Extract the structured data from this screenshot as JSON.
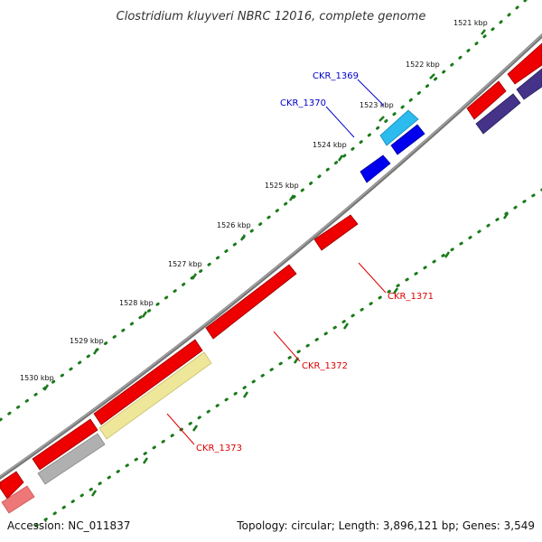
{
  "title": "Clostridium kluyveri NBRC 12016, complete genome",
  "footer": {
    "accession": "Accession: NC_011837",
    "summary": "Topology: circular; Length: 3,896,121 bp; Genes: 3,549"
  },
  "ticks": [
    {
      "label": "1521 kbp"
    },
    {
      "label": "1522 kbp"
    },
    {
      "label": "1523 kbp"
    },
    {
      "label": "1524 kbp"
    },
    {
      "label": "1525 kbp"
    },
    {
      "label": "1526 kbp"
    },
    {
      "label": "1527 kbp"
    },
    {
      "label": "1528 kbp"
    },
    {
      "label": "1529 kbp"
    },
    {
      "label": "1530 kbp"
    }
  ],
  "labels": [
    {
      "text": "CKR_1369",
      "color": "#0000cc"
    },
    {
      "text": "CKR_1370",
      "color": "#0000cc"
    },
    {
      "text": "CKR_1371",
      "color": "#dd0000"
    },
    {
      "text": "CKR_1372",
      "color": "#dd0000"
    },
    {
      "text": "CKR_1373",
      "color": "#dd0000"
    }
  ],
  "colors": {
    "backbone": "#777777",
    "tick": "#1a7a1a",
    "red": "#ee0000",
    "blue": "#0000ee",
    "cyan": "#22bbee",
    "navy": "#443388",
    "yellow": "#eee699",
    "gray": "#b0b0b0",
    "pink": "#ee7777"
  }
}
